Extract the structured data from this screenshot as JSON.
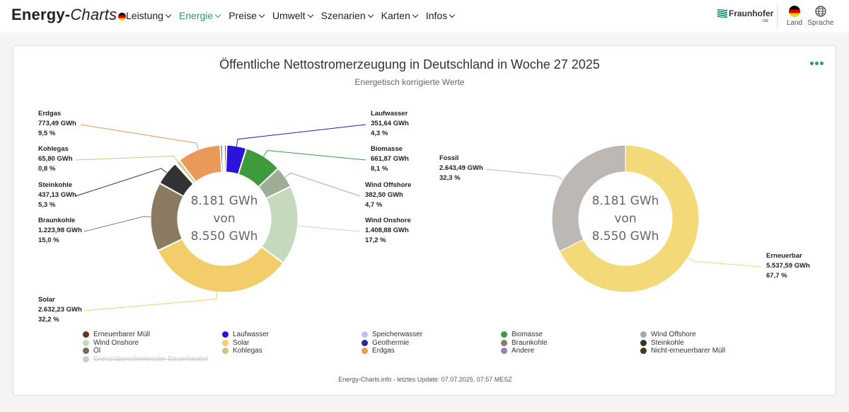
{
  "header": {
    "logo_main": "Energy-",
    "logo_italic": "Charts",
    "nav": [
      {
        "label": "Leistung",
        "active": false
      },
      {
        "label": "Energie",
        "active": true
      },
      {
        "label": "Preise",
        "active": false
      },
      {
        "label": "Umwelt",
        "active": false
      },
      {
        "label": "Szenarien",
        "active": false
      },
      {
        "label": "Karten",
        "active": false
      },
      {
        "label": "Infos",
        "active": false
      }
    ],
    "brand": "Fraunhofer",
    "brand_sub": "ISE",
    "land_label": "Land",
    "sprache_label": "Sprache"
  },
  "chart_title": "Öffentliche Nettostromerzeugung in Deutschland in Woche 27 2025",
  "chart_subtitle": "Energetisch korrigierte Werte",
  "center_text": [
    "8.181 GWh",
    "von",
    "8.550 GWh"
  ],
  "footer": "Energy-Charts.info - letztes Update: 07.07.2025, 07:57 MESZ",
  "chart_data": [
    {
      "type": "pie",
      "title": "Öffentliche Nettostromerzeugung in Deutschland in Woche 27 2025",
      "unit": "GWh",
      "slices": [
        {
          "name": "Erneuerbarer Müll",
          "value": 40,
          "color": "#5a3a1a",
          "label": null
        },
        {
          "name": "Laufwasser",
          "value": 351.64,
          "color": "#2a14d9",
          "label": [
            "Laufwasser",
            "351,64 GWh",
            "4,3 %"
          ]
        },
        {
          "name": "Biomasse",
          "value": 661.87,
          "color": "#3d9b3d",
          "label": [
            "Biomasse",
            "661,87 GWh",
            "8,1 %"
          ]
        },
        {
          "name": "Wind Offshore",
          "value": 382.5,
          "color": "#9fad97",
          "label": [
            "Wind Offshore",
            "382,50 GWh",
            "4,7 %"
          ]
        },
        {
          "name": "Wind Onshore",
          "value": 1408.88,
          "color": "#c5d9bd",
          "label": [
            "Wind Onshore",
            "1.408,88 GWh",
            "17,2 %"
          ]
        },
        {
          "name": "Solar",
          "value": 2632.23,
          "color": "#f4cd6b",
          "label": [
            "Solar",
            "2.632,23 GWh",
            "32,2 %"
          ]
        },
        {
          "name": "Braunkohle",
          "value": 1223.98,
          "color": "#8b7a62",
          "label": [
            "Braunkohle",
            "1.223,98 GWh",
            "15,0 %"
          ]
        },
        {
          "name": "Steinkohle",
          "value": 437.13,
          "color": "#333333",
          "label": [
            "Steinkohle",
            "437,13 GWh",
            "5,3 %"
          ]
        },
        {
          "name": "Öl",
          "value": 25,
          "color": "#7a6a58",
          "label": null
        },
        {
          "name": "Kohlegas",
          "value": 65.8,
          "color": "#d4c27a",
          "label": [
            "Kohlegas",
            "65,80 GWh",
            "0,8 %"
          ]
        },
        {
          "name": "Erdgas",
          "value": 773.49,
          "color": "#e99a58",
          "label": [
            "Erdgas",
            "773,49 GWh",
            "9,5 %"
          ]
        },
        {
          "name": "Nicht-erneuerbarer Müll",
          "value": 40,
          "color": "#4a3418",
          "label": null
        },
        {
          "name": "Andere",
          "value": 30,
          "color": "#5a4630",
          "label": null
        }
      ]
    },
    {
      "type": "pie",
      "unit": "GWh",
      "slices": [
        {
          "name": "Erneuerbar",
          "value": 5537.59,
          "color": "#f4d978",
          "label": [
            "Erneuerbar",
            "5.537,59 GWh",
            "67,7 %"
          ]
        },
        {
          "name": "Fossil",
          "value": 2643.49,
          "color": "#bdb8b3",
          "label": [
            "Fossil",
            "2.643,49 GWh",
            "32,3 %"
          ]
        }
      ]
    }
  ],
  "legend": [
    {
      "name": "Erneuerbarer Müll",
      "color": "#5a3a1a",
      "off": false
    },
    {
      "name": "Laufwasser",
      "color": "#2a14d9",
      "off": false
    },
    {
      "name": "Speicherwasser",
      "color": "#b8c4ea",
      "off": false
    },
    {
      "name": "Biomasse",
      "color": "#3d9b3d",
      "off": false
    },
    {
      "name": "Wind Offshore",
      "color": "#9fad97",
      "off": false
    },
    {
      "name": "Wind Onshore",
      "color": "#c5d9bd",
      "off": false
    },
    {
      "name": "Solar",
      "color": "#f4cd6b",
      "off": false
    },
    {
      "name": "Geothermie",
      "color": "#2a2a9a",
      "off": false
    },
    {
      "name": "Braunkohle",
      "color": "#8b7a62",
      "off": false
    },
    {
      "name": "Steinkohle",
      "color": "#333333",
      "off": false
    },
    {
      "name": "Öl",
      "color": "#7a6a58",
      "off": false
    },
    {
      "name": "Kohlegas",
      "color": "#d4c27a",
      "off": false
    },
    {
      "name": "Erdgas",
      "color": "#e99a58",
      "off": false
    },
    {
      "name": "Andere",
      "color": "#9580b8",
      "off": false
    },
    {
      "name": "Nicht-erneuerbarer Müll",
      "color": "#4a3418",
      "off": false
    },
    {
      "name": "Grenzüberschreitender Stromhandel",
      "color": "#cccccc",
      "off": true
    }
  ]
}
